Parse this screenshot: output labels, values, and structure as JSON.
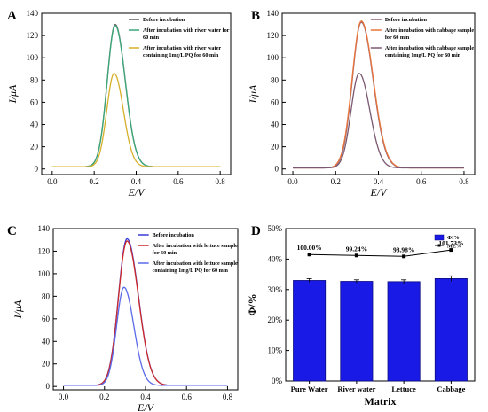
{
  "chart_data": [
    {
      "panel": "A",
      "type": "line",
      "xlabel": "E/V",
      "ylabel": "I/μA",
      "xlim": [
        -0.05,
        0.85
      ],
      "ylim": [
        -5,
        140
      ],
      "xticks": [
        "0.0",
        "0.2",
        "0.4",
        "0.6",
        "0.8"
      ],
      "yticks": [
        "0",
        "20",
        "40",
        "60",
        "80",
        "100",
        "120",
        "140"
      ],
      "legend_position": "top-right",
      "x_range": [
        0.0,
        0.8
      ],
      "series": [
        {
          "name": "Before incubation",
          "color": "#606060",
          "peak_x": 0.3,
          "peak_y": 130,
          "baseline": 2,
          "sigma_left": 0.038,
          "sigma_right": 0.048
        },
        {
          "name": "After incubation with river water for 60 min",
          "color": "#3aa878",
          "peak_x": 0.3,
          "peak_y": 129,
          "baseline": 2,
          "sigma_left": 0.038,
          "sigma_right": 0.048
        },
        {
          "name": "After incubation with river water containing 1mg/L PQ for 60 min",
          "color": "#d6b02a",
          "peak_x": 0.295,
          "peak_y": 86,
          "baseline": 2,
          "sigma_left": 0.035,
          "sigma_right": 0.044
        }
      ]
    },
    {
      "panel": "B",
      "type": "line",
      "xlabel": "E/V",
      "ylabel": "I/μA",
      "xlim": [
        -0.05,
        0.85
      ],
      "ylim": [
        -5,
        140
      ],
      "xticks": [
        "0.0",
        "0.2",
        "0.4",
        "0.6",
        "0.8"
      ],
      "yticks": [
        "0",
        "20",
        "40",
        "60",
        "80",
        "100",
        "120",
        "140"
      ],
      "legend_position": "top-right",
      "x_range": [
        0.0,
        0.8
      ],
      "series": [
        {
          "name": "Before incubation",
          "color": "#8a5f74",
          "peak_x": 0.32,
          "peak_y": 132,
          "baseline": 1,
          "sigma_left": 0.042,
          "sigma_right": 0.055
        },
        {
          "name": "After incubation with cabbage sample for 60 min",
          "color": "#e8743b",
          "peak_x": 0.32,
          "peak_y": 133,
          "baseline": 1,
          "sigma_left": 0.043,
          "sigma_right": 0.056
        },
        {
          "name": "After incubation with cabbage sample containing 1mg/L PQ for 60 min",
          "color": "#7a5870",
          "peak_x": 0.31,
          "peak_y": 86,
          "baseline": 1,
          "sigma_left": 0.038,
          "sigma_right": 0.05
        }
      ]
    },
    {
      "panel": "C",
      "type": "line",
      "xlabel": "E/V",
      "ylabel": "I/μA",
      "xlim": [
        -0.05,
        0.85
      ],
      "ylim": [
        -3,
        140
      ],
      "xticks": [
        "0.0",
        "0.2",
        "0.4",
        "0.6",
        "0.8"
      ],
      "yticks": [
        "0",
        "20",
        "40",
        "60",
        "80",
        "100",
        "120",
        "140"
      ],
      "legend_position": "top-right",
      "x_range": [
        0.0,
        0.8
      ],
      "series": [
        {
          "name": "Before incubation",
          "color": "#3a3ad8",
          "peak_x": 0.31,
          "peak_y": 131,
          "baseline": 1,
          "sigma_left": 0.042,
          "sigma_right": 0.056
        },
        {
          "name": "After incubation with lettuce sample for 60 min",
          "color": "#cc2a2a",
          "peak_x": 0.31,
          "peak_y": 129,
          "baseline": 1,
          "sigma_left": 0.042,
          "sigma_right": 0.056
        },
        {
          "name": "After incubation with lettuce sample containing 1mg/L PQ for 60 min",
          "color": "#5a6ae8",
          "peak_x": 0.295,
          "peak_y": 88,
          "baseline": 1,
          "sigma_left": 0.036,
          "sigma_right": 0.048
        }
      ]
    },
    {
      "panel": "D",
      "type": "bar",
      "xlabel": "Matrix",
      "ylabel": "Φ/%",
      "ylim": [
        0,
        50
      ],
      "yticks": [
        "0%",
        "10%",
        "20%",
        "30%",
        "40%",
        "50%"
      ],
      "categories": [
        "Pure Water",
        "River water",
        "Lettuce",
        "Cabbage"
      ],
      "legend_position": "top-right",
      "series": [
        {
          "name": "ΦI%",
          "color": "#1a1ae6",
          "values": [
            33.0,
            32.7,
            32.6,
            33.6
          ],
          "errors": [
            0.6,
            0.5,
            0.6,
            0.9
          ]
        },
        {
          "name": "ME%",
          "color": "#000000",
          "values": [
            41.5,
            41.2,
            40.9,
            43.0
          ],
          "labels": [
            "100.00%",
            "99.24%",
            "98.98%",
            "101.73%"
          ]
        }
      ]
    }
  ]
}
